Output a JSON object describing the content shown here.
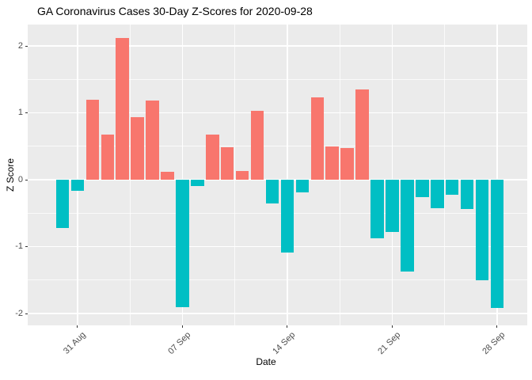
{
  "chart_data": {
    "type": "bar",
    "title": "GA Coronavirus Cases 30-Day Z-Scores for 2020-09-28",
    "xlabel": "Date",
    "ylabel": "Z Score",
    "x": [
      "2020-08-30",
      "2020-08-31",
      "2020-09-01",
      "2020-09-02",
      "2020-09-03",
      "2020-09-04",
      "2020-09-05",
      "2020-09-06",
      "2020-09-07",
      "2020-09-08",
      "2020-09-09",
      "2020-09-10",
      "2020-09-11",
      "2020-09-12",
      "2020-09-13",
      "2020-09-14",
      "2020-09-15",
      "2020-09-16",
      "2020-09-17",
      "2020-09-18",
      "2020-09-19",
      "2020-09-20",
      "2020-09-21",
      "2020-09-22",
      "2020-09-23",
      "2020-09-24",
      "2020-09-25",
      "2020-09-26",
      "2020-09-27",
      "2020-09-28"
    ],
    "values": [
      -0.72,
      -0.17,
      1.2,
      0.67,
      2.12,
      0.93,
      1.18,
      0.12,
      -1.9,
      -0.09,
      0.67,
      0.48,
      0.13,
      1.03,
      -0.35,
      -1.09,
      -0.19,
      1.23,
      0.5,
      0.47,
      1.35,
      -0.87,
      -0.78,
      -1.37,
      -0.26,
      -0.43,
      -0.22,
      -0.44,
      -1.5,
      -1.92
    ],
    "x_tick_labels": [
      "31 Aug",
      "07 Sep",
      "14 Sep",
      "21 Sep",
      "28 Sep"
    ],
    "x_tick_indices": [
      1,
      8,
      15,
      22,
      29
    ],
    "x_minor_indices": [
      4.5,
      11.5,
      18.5,
      25.5
    ],
    "y_ticks": [
      2,
      1,
      0,
      -1,
      -2
    ],
    "y_minor_ticks": [
      1.5,
      0.5,
      -0.5,
      -1.5
    ],
    "ylim": [
      -2.18,
      2.32
    ],
    "grid": true,
    "legend": "none",
    "positive_color": "#F8766D",
    "negative_color": "#00BFC4",
    "panel_background": "#EBEBEB",
    "gridline_color": "#FFFFFF"
  }
}
